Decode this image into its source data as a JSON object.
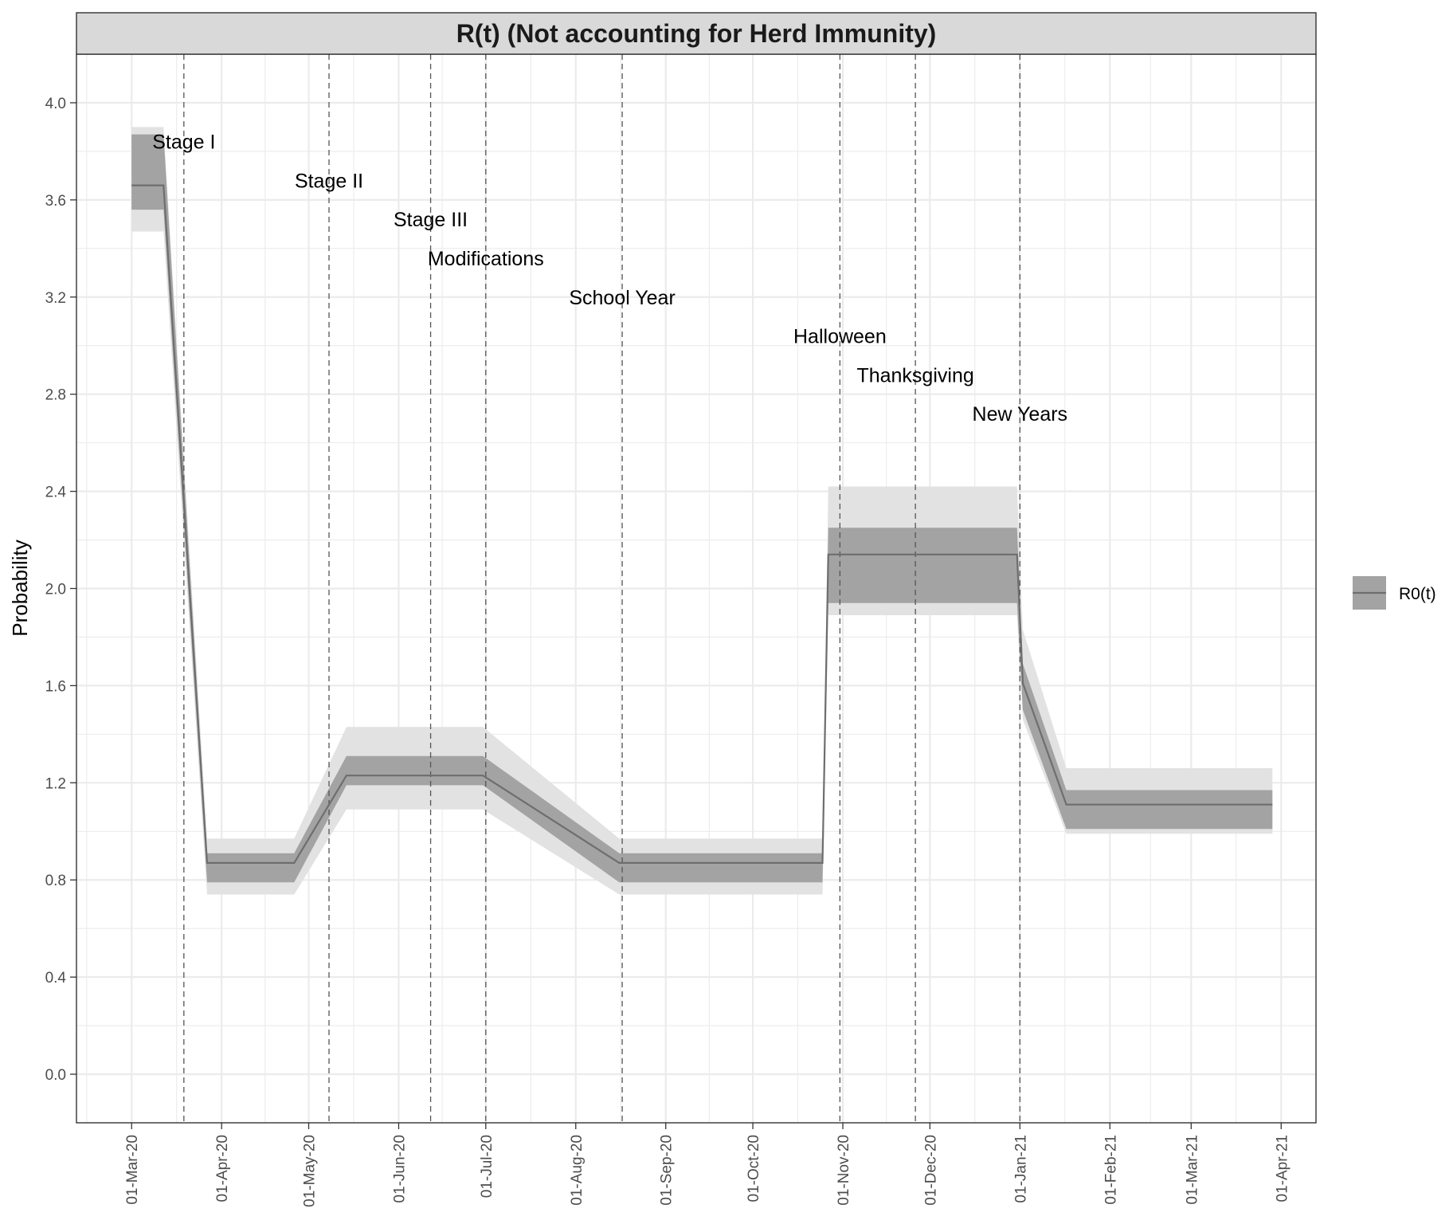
{
  "chart_data": {
    "type": "line",
    "title": "R(t) (Not accounting for Herd Immunity)",
    "xlabel": "",
    "ylabel": "Probability",
    "ylim": [
      -0.2,
      4.2
    ],
    "xlim": [
      "2020-02-11",
      "2021-04-13"
    ],
    "y_ticks": [
      0.0,
      0.4,
      0.8,
      1.2,
      1.6,
      2.0,
      2.4,
      2.8,
      3.2,
      3.6,
      4.0
    ],
    "y_tick_labels": [
      "0.0",
      "0.4",
      "0.8",
      "1.2",
      "1.6",
      "2.0",
      "2.4",
      "2.8",
      "3.2",
      "3.6",
      "4.0"
    ],
    "x_ticks": [
      "2020-03-01",
      "2020-04-01",
      "2020-05-01",
      "2020-06-01",
      "2020-07-01",
      "2020-08-01",
      "2020-09-01",
      "2020-10-01",
      "2020-11-01",
      "2020-12-01",
      "2021-01-01",
      "2021-02-01",
      "2021-03-01",
      "2021-04-01"
    ],
    "x_tick_labels": [
      "01-Mar-20",
      "01-Apr-20",
      "01-May-20",
      "01-Jun-20",
      "01-Jul-20",
      "01-Aug-20",
      "01-Sep-20",
      "01-Oct-20",
      "01-Nov-20",
      "01-Dec-20",
      "01-Jan-21",
      "01-Feb-21",
      "01-Mar-21",
      "01-Apr-21"
    ],
    "grid": true,
    "legend": {
      "position": "right",
      "entries": [
        "R0(t)"
      ]
    },
    "colors": {
      "line": "#6e6e6e",
      "inner_band": "#a3a3a3",
      "outer_band": "#e2e2e2",
      "strip": "#d9d9d9",
      "grid": "#ebebeb",
      "vline": "#555555"
    },
    "series": [
      {
        "name": "R0(t)",
        "x": [
          "2020-03-01",
          "2020-03-12",
          "2020-03-27",
          "2020-04-26",
          "2020-05-14",
          "2020-06-30",
          "2020-08-16",
          "2020-10-25",
          "2020-10-27",
          "2020-12-31",
          "2021-01-02",
          "2021-01-17",
          "2021-03-29"
        ],
        "y": [
          3.66,
          3.66,
          0.87,
          0.87,
          1.23,
          1.23,
          0.87,
          0.87,
          2.14,
          2.14,
          1.61,
          1.11,
          1.11
        ],
        "inner_lower": [
          3.56,
          3.56,
          0.79,
          0.79,
          1.19,
          1.19,
          0.79,
          0.79,
          1.94,
          1.94,
          1.5,
          1.01,
          1.01
        ],
        "inner_upper": [
          3.87,
          3.87,
          0.91,
          0.91,
          1.31,
          1.31,
          0.91,
          0.91,
          2.25,
          2.25,
          1.69,
          1.17,
          1.17
        ],
        "outer_lower": [
          3.47,
          3.47,
          0.74,
          0.74,
          1.09,
          1.09,
          0.74,
          0.74,
          1.89,
          1.89,
          1.46,
          0.99,
          0.99
        ],
        "outer_upper": [
          3.9,
          3.9,
          0.97,
          0.97,
          1.43,
          1.43,
          0.97,
          0.97,
          2.42,
          2.42,
          1.83,
          1.26,
          1.26
        ]
      }
    ],
    "annotations": [
      {
        "label": "Stage I",
        "date": "2020-03-19",
        "y": 3.84
      },
      {
        "label": "Stage II",
        "date": "2020-05-08",
        "y": 3.68
      },
      {
        "label": "Stage III",
        "date": "2020-06-12",
        "y": 3.52
      },
      {
        "label": "Modifications",
        "date": "2020-07-01",
        "y": 3.36
      },
      {
        "label": "School Year",
        "date": "2020-08-17",
        "y": 3.2
      },
      {
        "label": "Halloween",
        "date": "2020-10-31",
        "y": 3.04
      },
      {
        "label": "Thanksgiving",
        "date": "2020-11-26",
        "y": 2.88
      },
      {
        "label": "New Years",
        "date": "2021-01-01",
        "y": 2.72
      }
    ]
  }
}
